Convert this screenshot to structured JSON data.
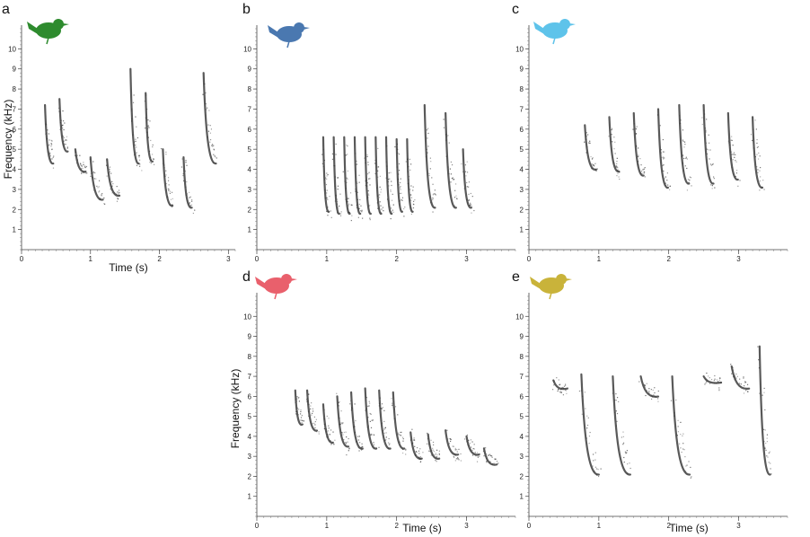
{
  "chart_data": [
    {
      "panel": "a",
      "type": "spectrogram",
      "bird_color": "#2e8b2e",
      "xlabel": "Time (s)",
      "ylabel": "Frequency (kHz)",
      "xlim": [
        0,
        3.1
      ],
      "ylim": [
        0,
        11
      ],
      "xticks": [
        0,
        1,
        2,
        3
      ],
      "yticks": [
        1,
        2,
        3,
        4,
        5,
        6,
        7,
        8,
        9,
        10
      ],
      "notes": [
        {
          "t": 0.34,
          "f1": 7.2,
          "f2": 4.2,
          "dur": 0.12
        },
        {
          "t": 0.55,
          "f1": 7.5,
          "f2": 4.8,
          "dur": 0.12
        },
        {
          "t": 0.78,
          "f1": 5.0,
          "f2": 3.8,
          "dur": 0.15
        },
        {
          "t": 1.0,
          "f1": 4.6,
          "f2": 2.4,
          "dur": 0.18
        },
        {
          "t": 1.24,
          "f1": 4.5,
          "f2": 2.6,
          "dur": 0.18
        },
        {
          "t": 1.58,
          "f1": 9.0,
          "f2": 4.2,
          "dur": 0.12
        },
        {
          "t": 1.8,
          "f1": 7.8,
          "f2": 4.3,
          "dur": 0.1
        },
        {
          "t": 2.05,
          "f1": 5.0,
          "f2": 2.1,
          "dur": 0.14
        },
        {
          "t": 2.35,
          "f1": 4.6,
          "f2": 2.0,
          "dur": 0.12
        },
        {
          "t": 2.64,
          "f1": 8.8,
          "f2": 4.2,
          "dur": 0.18
        }
      ]
    },
    {
      "panel": "b",
      "type": "spectrogram",
      "bird_color": "#4a78b0",
      "xlim": [
        0,
        3.7
      ],
      "ylim": [
        0,
        11
      ],
      "xticks": [
        0,
        1,
        2,
        3
      ],
      "yticks": [
        1,
        2,
        3,
        4,
        5,
        6,
        7,
        8,
        9,
        10
      ],
      "notes": [
        {
          "t": 0.95,
          "f1": 5.6,
          "f2": 1.8,
          "dur": 0.08
        },
        {
          "t": 1.1,
          "f1": 5.6,
          "f2": 1.7,
          "dur": 0.08
        },
        {
          "t": 1.25,
          "f1": 5.6,
          "f2": 1.7,
          "dur": 0.08
        },
        {
          "t": 1.4,
          "f1": 5.6,
          "f2": 1.7,
          "dur": 0.08
        },
        {
          "t": 1.55,
          "f1": 5.6,
          "f2": 1.7,
          "dur": 0.08
        },
        {
          "t": 1.7,
          "f1": 5.6,
          "f2": 1.7,
          "dur": 0.08
        },
        {
          "t": 1.85,
          "f1": 5.6,
          "f2": 1.7,
          "dur": 0.08
        },
        {
          "t": 2.0,
          "f1": 5.5,
          "f2": 1.8,
          "dur": 0.08
        },
        {
          "t": 2.15,
          "f1": 5.5,
          "f2": 1.8,
          "dur": 0.08
        },
        {
          "t": 2.4,
          "f1": 7.2,
          "f2": 2.0,
          "dur": 0.15
        },
        {
          "t": 2.7,
          "f1": 6.8,
          "f2": 2.0,
          "dur": 0.15
        },
        {
          "t": 2.95,
          "f1": 5.0,
          "f2": 2.0,
          "dur": 0.12
        }
      ]
    },
    {
      "panel": "c",
      "type": "spectrogram",
      "bird_color": "#5ec3ea",
      "xlim": [
        0,
        3.7
      ],
      "ylim": [
        0,
        11
      ],
      "xticks": [
        0,
        1,
        2,
        3
      ],
      "yticks": [
        1,
        2,
        3,
        4,
        5,
        6,
        7,
        8,
        9,
        10
      ],
      "notes": [
        {
          "t": 0.8,
          "f1": 6.2,
          "f2": 3.9,
          "dur": 0.16
        },
        {
          "t": 1.15,
          "f1": 6.6,
          "f2": 3.8,
          "dur": 0.14
        },
        {
          "t": 1.5,
          "f1": 6.8,
          "f2": 3.6,
          "dur": 0.14
        },
        {
          "t": 1.85,
          "f1": 7.0,
          "f2": 3.0,
          "dur": 0.14
        },
        {
          "t": 2.15,
          "f1": 7.2,
          "f2": 3.2,
          "dur": 0.14
        },
        {
          "t": 2.5,
          "f1": 7.2,
          "f2": 3.2,
          "dur": 0.14
        },
        {
          "t": 2.85,
          "f1": 6.8,
          "f2": 3.4,
          "dur": 0.14
        },
        {
          "t": 3.2,
          "f1": 6.6,
          "f2": 3.0,
          "dur": 0.14
        }
      ]
    },
    {
      "panel": "d",
      "type": "spectrogram",
      "bird_color": "#e9606c",
      "xlabel": "Time (s)",
      "ylabel": "Frequency (kHz)",
      "xlim": [
        0,
        3.7
      ],
      "ylim": [
        0,
        11
      ],
      "xticks": [
        0,
        1,
        2,
        3
      ],
      "yticks": [
        1,
        2,
        3,
        4,
        5,
        6,
        7,
        8,
        9,
        10
      ],
      "notes": [
        {
          "t": 0.55,
          "f1": 6.3,
          "f2": 4.5,
          "dur": 0.1
        },
        {
          "t": 0.72,
          "f1": 6.3,
          "f2": 4.2,
          "dur": 0.14
        },
        {
          "t": 0.95,
          "f1": 5.6,
          "f2": 3.6,
          "dur": 0.14
        },
        {
          "t": 1.15,
          "f1": 6.0,
          "f2": 3.4,
          "dur": 0.16
        },
        {
          "t": 1.35,
          "f1": 6.2,
          "f2": 3.3,
          "dur": 0.16
        },
        {
          "t": 1.55,
          "f1": 6.4,
          "f2": 3.3,
          "dur": 0.16
        },
        {
          "t": 1.75,
          "f1": 6.3,
          "f2": 3.3,
          "dur": 0.16
        },
        {
          "t": 1.95,
          "f1": 6.2,
          "f2": 3.3,
          "dur": 0.16
        },
        {
          "t": 2.2,
          "f1": 4.2,
          "f2": 2.8,
          "dur": 0.16
        },
        {
          "t": 2.45,
          "f1": 4.1,
          "f2": 2.8,
          "dur": 0.16
        },
        {
          "t": 2.7,
          "f1": 4.3,
          "f2": 3.0,
          "dur": 0.18
        },
        {
          "t": 3.0,
          "f1": 4.0,
          "f2": 3.0,
          "dur": 0.18
        },
        {
          "t": 3.25,
          "f1": 3.4,
          "f2": 2.5,
          "dur": 0.18
        }
      ]
    },
    {
      "panel": "e",
      "type": "spectrogram",
      "bird_color": "#c9b33a",
      "xlabel": "Time (s)",
      "xlim": [
        0,
        3.7
      ],
      "ylim": [
        0,
        11
      ],
      "xticks": [
        0,
        1,
        2,
        3
      ],
      "yticks": [
        1,
        2,
        3,
        4,
        5,
        6,
        7,
        8,
        9,
        10
      ],
      "notes": [
        {
          "t": 0.35,
          "f1": 6.8,
          "f2": 6.3,
          "dur": 0.2
        },
        {
          "t": 0.75,
          "f1": 7.1,
          "f2": 2.0,
          "dur": 0.25
        },
        {
          "t": 1.2,
          "f1": 7.0,
          "f2": 2.0,
          "dur": 0.25
        },
        {
          "t": 1.6,
          "f1": 7.0,
          "f2": 5.9,
          "dur": 0.25
        },
        {
          "t": 2.05,
          "f1": 7.0,
          "f2": 2.0,
          "dur": 0.25
        },
        {
          "t": 2.5,
          "f1": 7.0,
          "f2": 6.6,
          "dur": 0.25
        },
        {
          "t": 2.9,
          "f1": 7.5,
          "f2": 6.3,
          "dur": 0.25
        },
        {
          "t": 3.3,
          "f1": 8.5,
          "f2": 2.0,
          "dur": 0.15
        }
      ]
    }
  ]
}
